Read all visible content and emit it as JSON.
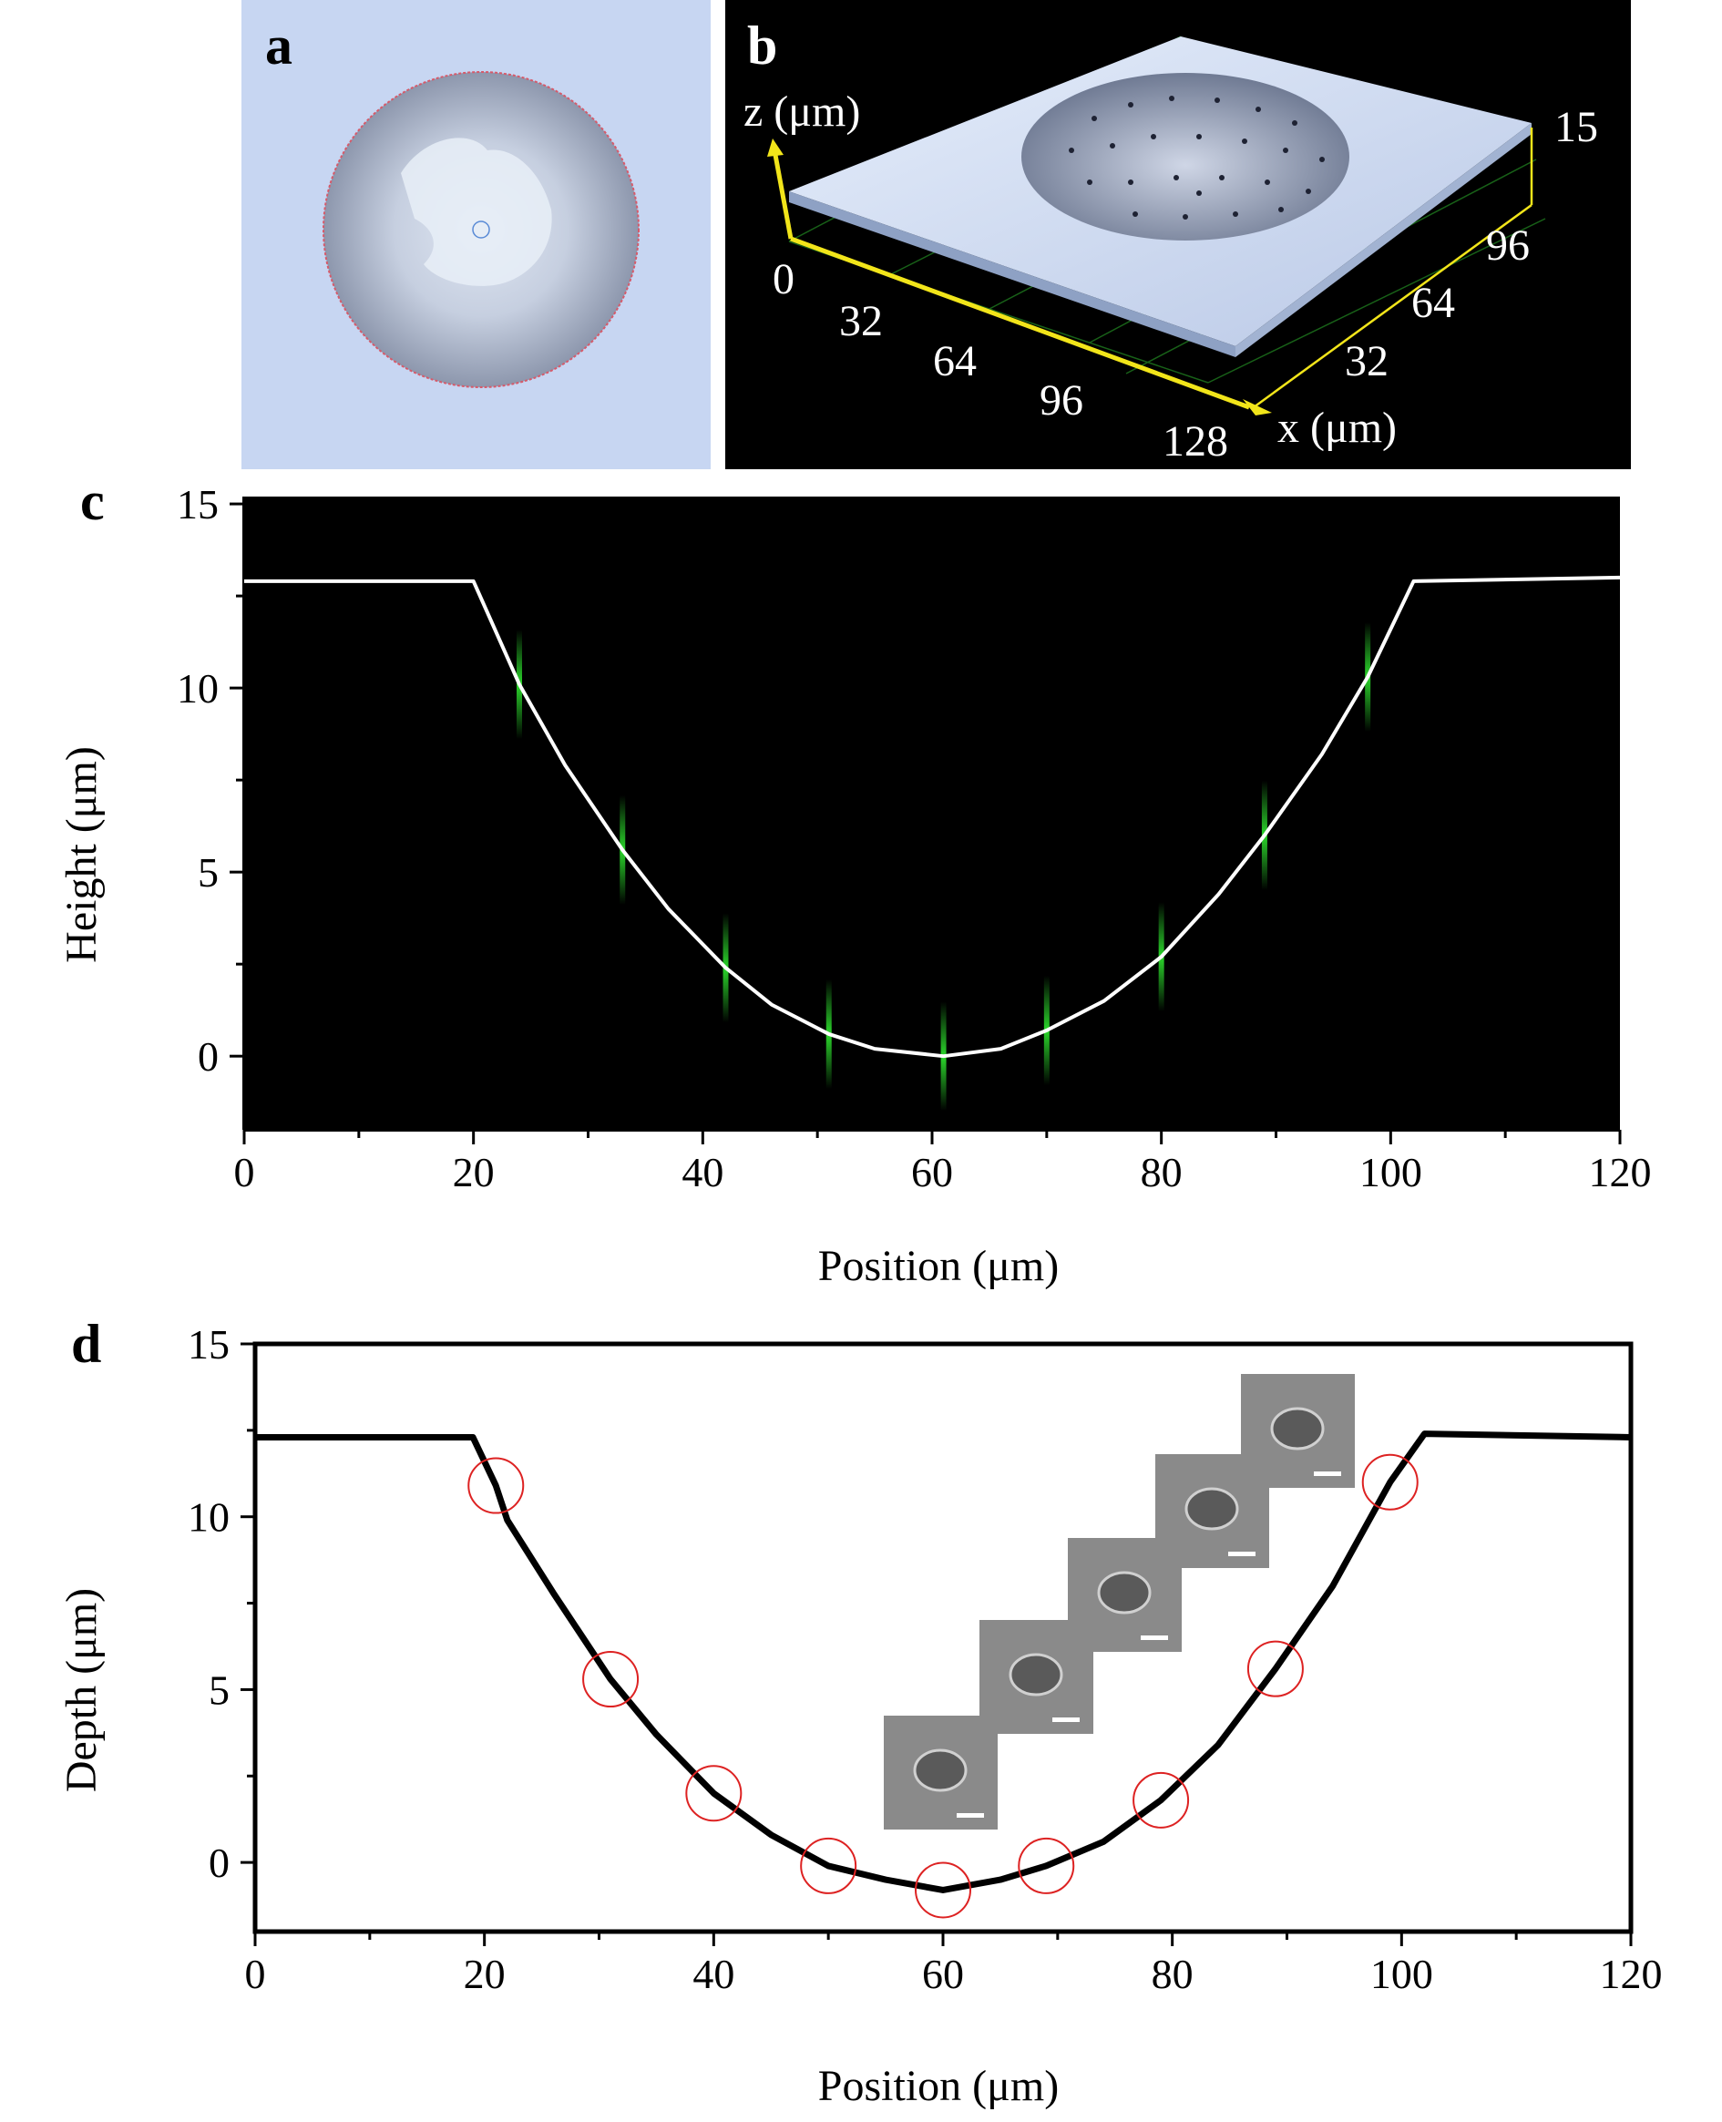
{
  "panel_a": {
    "label": "a"
  },
  "panel_b": {
    "label": "b",
    "z_axis_label": "z (μm)",
    "x_axis_label": "x (μm)",
    "z_tick": "15",
    "x_ticks": [
      "0",
      "32",
      "64",
      "96",
      "128"
    ],
    "y_ticks": [
      "32",
      "64",
      "96"
    ]
  },
  "chart_data": [
    {
      "type": "line",
      "label": "c",
      "xlabel": "Position (μm)",
      "ylabel": "Height (μm)",
      "xlim": [
        0,
        120
      ],
      "ylim": [
        -2,
        15.2
      ],
      "x_ticks": [
        0,
        20,
        40,
        60,
        80,
        100,
        120
      ],
      "y_ticks": [
        0,
        5,
        10,
        15
      ],
      "background": "#000000",
      "line_color": "#ffffff",
      "spot_color": "#2bd62b",
      "spots_x": [
        24,
        33,
        42,
        51,
        61,
        70,
        80,
        89,
        98
      ],
      "series": [
        {
          "x": [
            0,
            20,
            24,
            28,
            33,
            37,
            42,
            46,
            51,
            55,
            61,
            66,
            70,
            75,
            80,
            85,
            89,
            94,
            98,
            102,
            120
          ],
          "values": [
            12.9,
            12.9,
            10.1,
            7.9,
            5.6,
            4.0,
            2.4,
            1.4,
            0.6,
            0.2,
            0.0,
            0.2,
            0.7,
            1.5,
            2.7,
            4.4,
            6.0,
            8.2,
            10.3,
            12.9,
            13.0
          ]
        }
      ]
    },
    {
      "type": "line",
      "label": "d",
      "xlabel": "Position (μm)",
      "ylabel": "Depth (μm)",
      "xlim": [
        0,
        120
      ],
      "ylim": [
        -2,
        15
      ],
      "x_ticks": [
        0,
        20,
        40,
        60,
        80,
        100,
        120
      ],
      "y_ticks": [
        0,
        5,
        10,
        15
      ],
      "line_color": "#000000",
      "circle_color": "#dd2222",
      "highlight_x": [
        21,
        31,
        40,
        50,
        60,
        69,
        79,
        89,
        99
      ],
      "series": [
        {
          "x": [
            0,
            19,
            21,
            22,
            26,
            31,
            35,
            40,
            45,
            50,
            55,
            60,
            65,
            69,
            74,
            79,
            84,
            89,
            94,
            99,
            102,
            120
          ],
          "values": [
            12.3,
            12.3,
            10.9,
            9.9,
            7.8,
            5.3,
            3.7,
            2.0,
            0.8,
            -0.1,
            -0.5,
            -0.8,
            -0.5,
            -0.1,
            0.6,
            1.8,
            3.4,
            5.6,
            8.0,
            11.0,
            12.4,
            12.3
          ]
        }
      ]
    }
  ]
}
